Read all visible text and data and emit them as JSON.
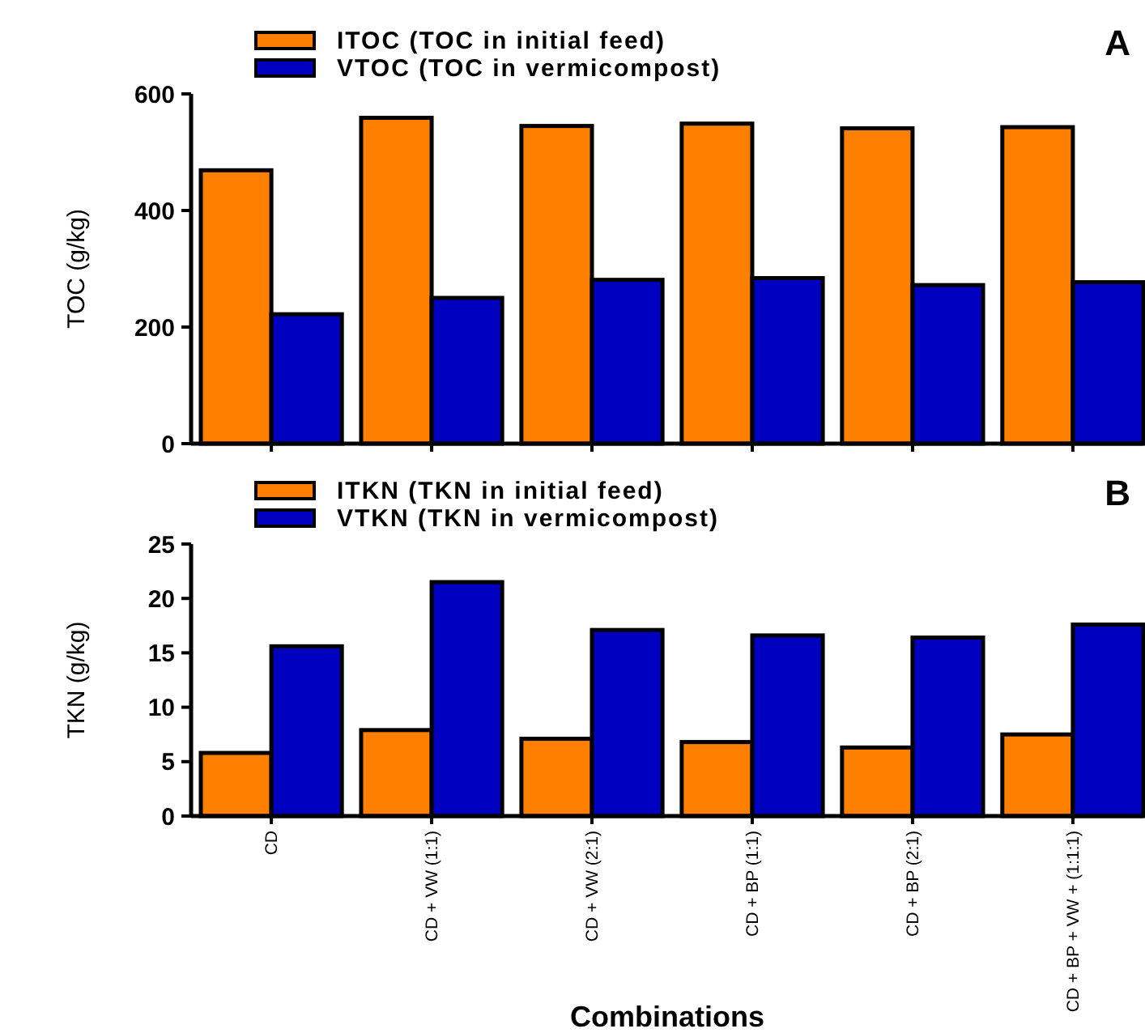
{
  "chart_data": [
    {
      "type": "bar",
      "categories": [
        null,
        null,
        null,
        null,
        null,
        null
      ],
      "ylabel": "TOC (g/kg)",
      "ylim": [
        0,
        600
      ],
      "yticks": [
        0,
        200,
        400,
        600
      ],
      "tick_labels": "y",
      "legend": "top left",
      "annotations": [
        "A"
      ],
      "series": [
        {
          "name": "ITOC (TOC in initial feed)",
          "color": "#ff8000",
          "values": [
            469,
            559,
            545,
            549,
            541,
            543
          ]
        },
        {
          "name": "VTOC (TOC in vermicompost)",
          "color": "#0000c0",
          "values": [
            222,
            250,
            281,
            284,
            272,
            277
          ]
        }
      ]
    },
    {
      "type": "bar",
      "categories": [
        "CD",
        "CD + VW (1:1)",
        "CD + VW (2:1)",
        "CD + BP (1:1)",
        "CD + BP (2:1)",
        "CD + BP + VW + (1:1:1)"
      ],
      "xlabel": "Combinations",
      "ylabel": "TKN (g/kg)",
      "ylim": [
        0,
        25
      ],
      "yticks": [
        0,
        5,
        10,
        15,
        20,
        25
      ],
      "legend": "top left",
      "annotations": [
        "B"
      ],
      "series": [
        {
          "name": "ITKN (TKN in initial feed)",
          "color": "#ff8000",
          "values": [
            5.8,
            7.9,
            7.1,
            6.8,
            6.3,
            7.5
          ]
        },
        {
          "name": "VTKN (TKN in vermicompost)",
          "color": "#0000c0",
          "values": [
            15.6,
            21.5,
            17.1,
            16.6,
            16.4,
            17.6
          ]
        }
      ]
    }
  ]
}
